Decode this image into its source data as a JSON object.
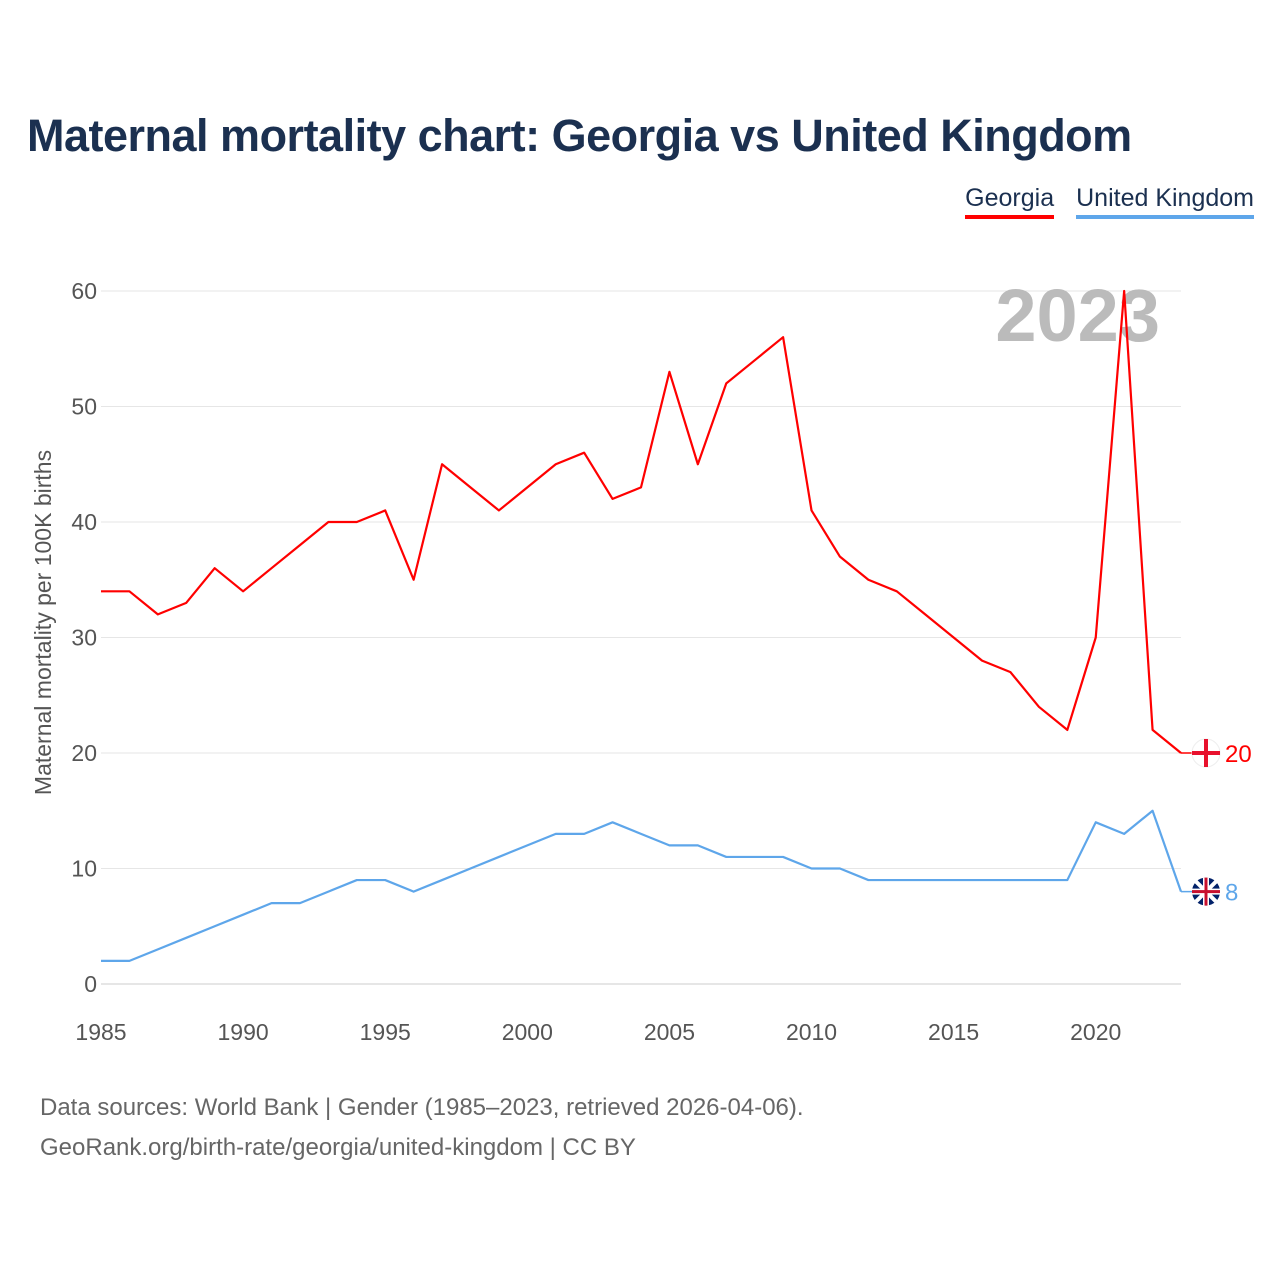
{
  "title": "Maternal mortality chart: Georgia vs United Kingdom",
  "chart_data": {
    "type": "line",
    "title": "Maternal mortality chart: Georgia vs United Kingdom",
    "ylabel": "Maternal mortality per 100K births",
    "xlabel": "",
    "xlim": [
      1985,
      2023
    ],
    "ylim": [
      0,
      60
    ],
    "x_ticks": [
      1985,
      1990,
      1995,
      2000,
      2005,
      2010,
      2015,
      2020
    ],
    "y_ticks": [
      0,
      10,
      20,
      30,
      40,
      50,
      60
    ],
    "year_label": "2023",
    "legend_position": "top-right",
    "x": [
      1985,
      1986,
      1987,
      1988,
      1989,
      1990,
      1991,
      1992,
      1993,
      1994,
      1995,
      1996,
      1997,
      1998,
      1999,
      2000,
      2001,
      2002,
      2003,
      2004,
      2005,
      2006,
      2007,
      2008,
      2009,
      2010,
      2011,
      2012,
      2013,
      2014,
      2015,
      2016,
      2017,
      2018,
      2019,
      2020,
      2021,
      2022,
      2023
    ],
    "series": [
      {
        "name": "Georgia",
        "color": "#ff0000",
        "end_label": "20",
        "values": [
          34,
          34,
          32,
          33,
          36,
          34,
          36,
          38,
          40,
          40,
          41,
          35,
          45,
          43,
          41,
          43,
          45,
          46,
          42,
          43,
          53,
          45,
          52,
          54,
          56,
          41,
          37,
          35,
          34,
          32,
          30,
          28,
          27,
          24,
          22,
          30,
          60,
          22,
          20
        ]
      },
      {
        "name": "United Kingdom",
        "color": "#5ea6ea",
        "end_label": "8",
        "values": [
          2,
          2,
          3,
          4,
          5,
          6,
          7,
          7,
          8,
          9,
          9,
          8,
          9,
          10,
          11,
          12,
          13,
          13,
          14,
          13,
          12,
          12,
          11,
          11,
          11,
          10,
          10,
          9,
          9,
          9,
          9,
          9,
          9,
          9,
          9,
          14,
          13,
          15,
          8
        ]
      }
    ]
  },
  "footer": {
    "line1": "Data sources: World Bank | Gender (1985–2023, retrieved 2026-04-06).",
    "line2": "GeoRank.org/birth-rate/georgia/united-kingdom | CC BY"
  }
}
